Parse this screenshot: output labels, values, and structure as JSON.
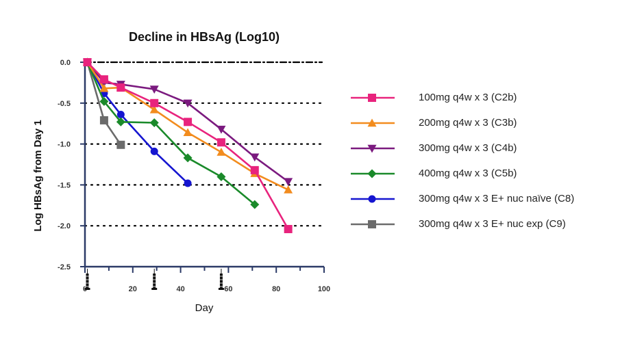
{
  "chart_data": {
    "type": "line",
    "title": "Decline in HBsAg (Log10)",
    "xlabel": "Day",
    "ylabel": "Log HBsAg from Day 1",
    "xlim": [
      0,
      100
    ],
    "ylim": [
      -2.5,
      0.0
    ],
    "x_ticks": [
      "0",
      "20",
      "40",
      "60",
      "80",
      "100"
    ],
    "y_ticks": [
      "0.0",
      "-0.5",
      "-1.0",
      "-1.5",
      "-2.0",
      "-2.5"
    ],
    "grid": "dotted horizontal reference lines at each y tick",
    "legend_position": "right",
    "dosing_days": [
      1,
      29,
      57
    ],
    "series": [
      {
        "name": "100mg q4w x 3 (C2b)",
        "color": "#e8237d",
        "marker": "square",
        "x": [
          1,
          8,
          15,
          29,
          43,
          57,
          71,
          85
        ],
        "y": [
          0.0,
          -0.21,
          -0.31,
          -0.5,
          -0.73,
          -0.98,
          -1.32,
          -2.04
        ]
      },
      {
        "name": "200mg q4w x 3 (C3b)",
        "color": "#f28c1e",
        "marker": "triangle-up",
        "x": [
          1,
          8,
          15,
          29,
          43,
          57,
          71,
          85
        ],
        "y": [
          0.0,
          -0.32,
          -0.31,
          -0.58,
          -0.86,
          -1.1,
          -1.36,
          -1.56
        ]
      },
      {
        "name": "300mg q4w x 3 (C4b)",
        "color": "#7b1a7f",
        "marker": "triangle-down",
        "x": [
          1,
          8,
          15,
          29,
          43,
          57,
          71,
          85
        ],
        "y": [
          0.0,
          -0.25,
          -0.27,
          -0.33,
          -0.5,
          -0.82,
          -1.16,
          -1.46
        ]
      },
      {
        "name": "400mg q4w x 3 (C5b)",
        "color": "#1a8a2a",
        "marker": "diamond",
        "x": [
          1,
          8,
          15,
          29,
          43,
          57,
          71
        ],
        "y": [
          0.0,
          -0.48,
          -0.73,
          -0.74,
          -1.17,
          -1.4,
          -1.74
        ]
      },
      {
        "name": "300mg q4w x 3 E+ nuc naïve (C8)",
        "color": "#1515d0",
        "marker": "circle",
        "x": [
          1,
          8,
          15,
          29,
          43
        ],
        "y": [
          0.0,
          -0.38,
          -0.64,
          -1.09,
          -1.48
        ]
      },
      {
        "name": "300mg q4w x 3 E+ nuc exp (C9)",
        "color": "#6b6b6b",
        "marker": "square",
        "x": [
          1,
          8,
          15
        ],
        "y": [
          0.0,
          -0.71,
          -1.01
        ]
      }
    ]
  }
}
